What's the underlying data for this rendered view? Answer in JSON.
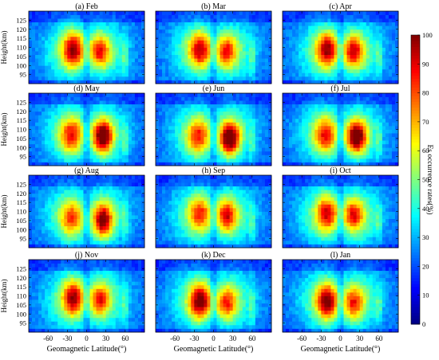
{
  "chart_data": {
    "type": "heatmap",
    "panels": [
      {
        "label": "(a) Feb"
      },
      {
        "label": "(b) Mar"
      },
      {
        "label": "(c) Apr"
      },
      {
        "label": "(d) May"
      },
      {
        "label": "(e) Jun"
      },
      {
        "label": "(f) Jul"
      },
      {
        "label": "(g) Aug"
      },
      {
        "label": "(h) Sep"
      },
      {
        "label": "(i) Oct"
      },
      {
        "label": "(j) Nov"
      },
      {
        "label": "(k) Dec"
      },
      {
        "label": "(l) Jan"
      }
    ],
    "panel_peaks": [
      {
        "nh": 68,
        "sh": 80,
        "nlat": 20,
        "h": 108
      },
      {
        "nh": 68,
        "sh": 75,
        "nlat": 20,
        "h": 108
      },
      {
        "nh": 74,
        "sh": 78,
        "nlat": 20,
        "h": 108
      },
      {
        "nh": 92,
        "sh": 68,
        "nlat": 25,
        "h": 106
      },
      {
        "nh": 93,
        "sh": 66,
        "nlat": 25,
        "h": 105
      },
      {
        "nh": 92,
        "sh": 68,
        "nlat": 25,
        "h": 106
      },
      {
        "nh": 84,
        "sh": 62,
        "nlat": 25,
        "h": 105
      },
      {
        "nh": 72,
        "sh": 65,
        "nlat": 20,
        "h": 108
      },
      {
        "nh": 70,
        "sh": 72,
        "nlat": 20,
        "h": 108
      },
      {
        "nh": 68,
        "sh": 78,
        "nlat": 20,
        "h": 108
      },
      {
        "nh": 66,
        "sh": 84,
        "nlat": 20,
        "h": 106
      },
      {
        "nh": 67,
        "sh": 82,
        "nlat": 20,
        "h": 106
      }
    ],
    "xlabel": "Geomagnetic Latitude(°)",
    "ylabel": "Height(km)",
    "xlim": [
      -90,
      90
    ],
    "ylim": [
      90,
      130
    ],
    "xticks": [
      "-60",
      "-30",
      "0",
      "30",
      "60"
    ],
    "xtick_values": [
      -60,
      -30,
      0,
      30,
      60
    ],
    "yticks": [
      "95",
      "100",
      "105",
      "110",
      "115",
      "120",
      "125"
    ],
    "ytick_values": [
      95,
      100,
      105,
      110,
      115,
      120,
      125
    ],
    "colorbar": {
      "label": "Es occurrence rates(%)",
      "ticks": [
        "0",
        "10",
        "20",
        "30",
        "40",
        "50",
        "60",
        "70",
        "80",
        "90",
        "100"
      ],
      "range": [
        0,
        100
      ],
      "colormap": "jet"
    }
  }
}
